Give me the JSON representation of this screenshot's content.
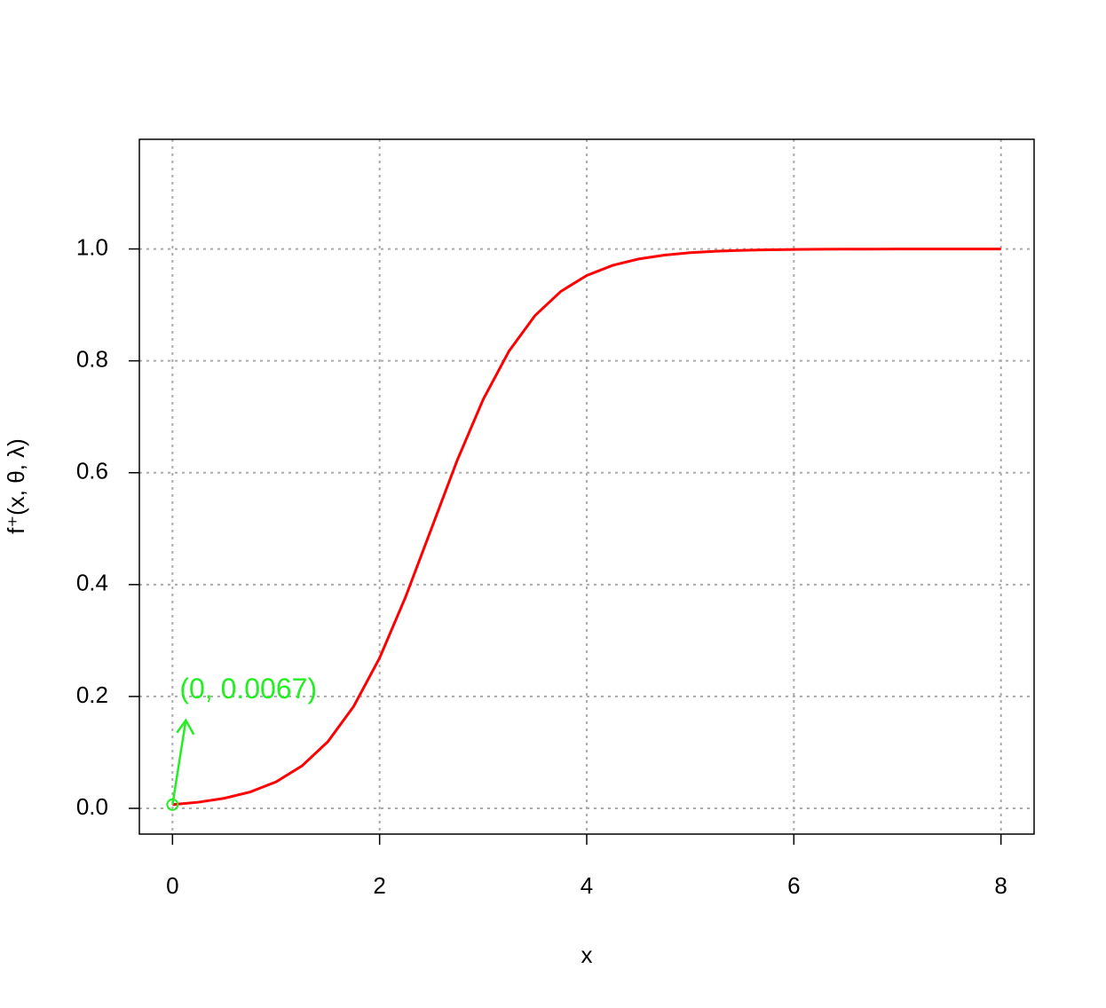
{
  "chart_data": {
    "type": "line",
    "x_label": "x",
    "y_label": "f⁺(x, θ, λ)",
    "x": [
      0,
      0.25,
      0.5,
      0.75,
      1,
      1.25,
      1.5,
      1.75,
      2,
      2.25,
      2.5,
      2.75,
      3,
      3.25,
      3.5,
      3.75,
      4,
      4.25,
      4.5,
      4.75,
      5,
      5.25,
      5.5,
      5.75,
      6,
      6.25,
      6.5,
      6.75,
      7,
      7.25,
      7.5,
      7.75,
      8
    ],
    "series": [
      {
        "color": "#ff0000",
        "values": [
          0.00669,
          0.01099,
          0.01799,
          0.02931,
          0.04743,
          0.07586,
          0.1192,
          0.18243,
          0.26894,
          0.37754,
          0.5,
          0.62246,
          0.73106,
          0.81757,
          0.8808,
          0.92414,
          0.95257,
          0.97069,
          0.98201,
          0.98901,
          0.99331,
          0.99593,
          0.99753,
          0.9985,
          0.99909,
          0.99945,
          0.99966,
          0.9998,
          0.99988,
          0.99993,
          0.99995,
          0.99997,
          0.99998
        ]
      }
    ],
    "xlim": [
      -0.32,
      8.32
    ],
    "ylim": [
      -0.046,
      1.196
    ],
    "xticks": [
      0,
      2,
      4,
      6,
      8
    ],
    "yticks": [
      {
        "value": 0,
        "label": "0.0"
      },
      0.2,
      0.4,
      0.6,
      0.8,
      {
        "value": 1,
        "label": "1.0"
      }
    ],
    "grid": true,
    "annotation": {
      "text": "(0, 0.0067)",
      "x": 0,
      "y": 0.0067,
      "color": "#22ee22"
    }
  }
}
